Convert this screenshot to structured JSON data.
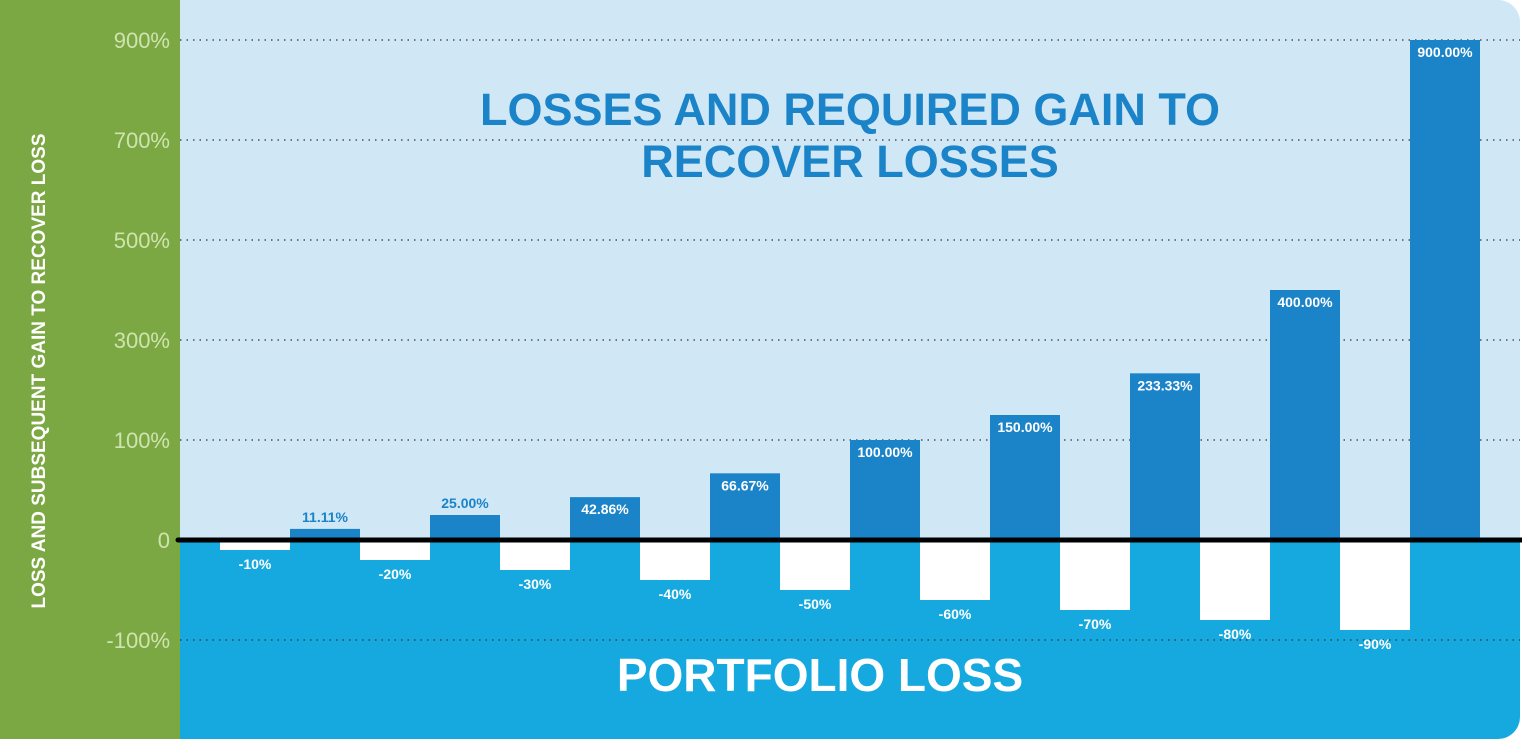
{
  "chart_data": {
    "type": "bar",
    "title": "LOSSES AND REQUIRED GAIN TO RECOVER LOSSES",
    "xlabel": "PORTFOLIO LOSS",
    "ylabel": "LOSS AND SUBSEQUENT GAIN TO RECOVER LOSS",
    "yticks": [
      900,
      700,
      500,
      300,
      100,
      0,
      -100
    ],
    "ytick_labels": [
      "900%",
      "700%",
      "500%",
      "300%",
      "100%",
      "0",
      "-100%"
    ],
    "ylim": [
      -100,
      900
    ],
    "grid": true,
    "series": [
      {
        "name": "Portfolio loss",
        "color": "#ffffff",
        "values": [
          -10,
          -20,
          -30,
          -40,
          -50,
          -60,
          -70,
          -80,
          -90
        ],
        "labels": [
          "-10%",
          "-20%",
          "-30%",
          "-40%",
          "-50%",
          "-60%",
          "-70%",
          "-80%",
          "-90%"
        ]
      },
      {
        "name": "Required gain",
        "color": "#1b83c8",
        "values": [
          11.11,
          25.0,
          42.86,
          66.67,
          100.0,
          150.0,
          233.33,
          400.0,
          900.0
        ],
        "labels": [
          "11.11%",
          "25.00%",
          "42.86%",
          "66.67%",
          "100.00%",
          "150.00%",
          "233.33%",
          "400.00%",
          "900.00%"
        ]
      }
    ]
  }
}
